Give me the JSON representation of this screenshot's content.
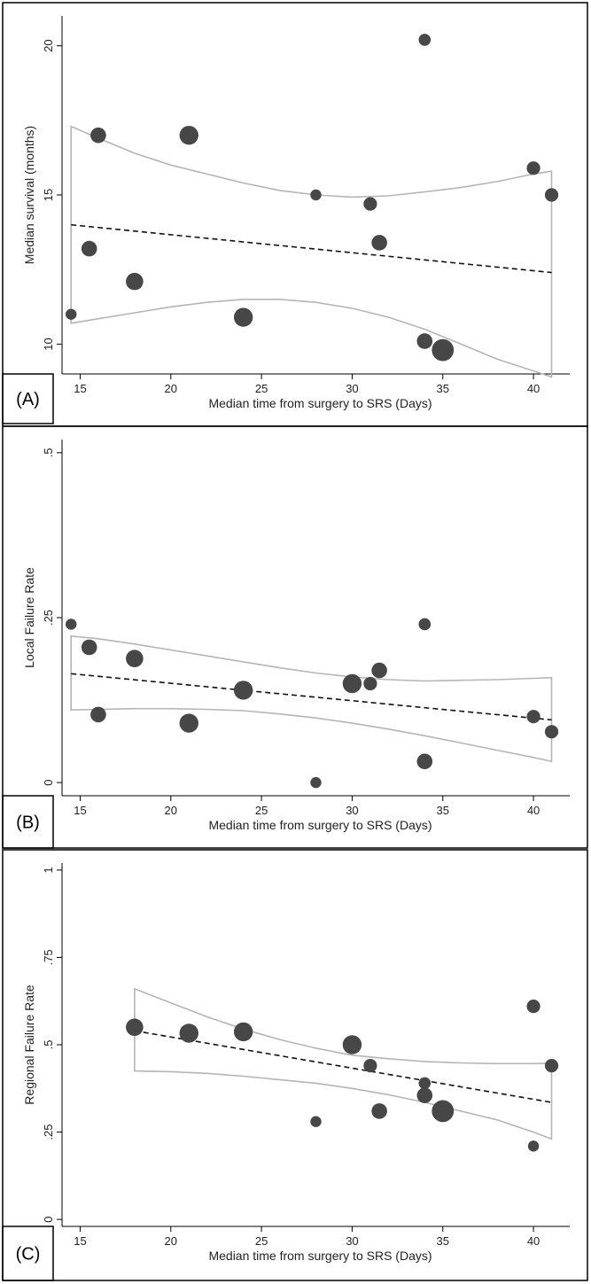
{
  "chart_data": [
    {
      "panel": "(A)",
      "type": "scatter",
      "xlabel": "Median time from surgery to SRS (Days)",
      "ylabel": "Median survival (months)",
      "xlim": [
        14,
        42
      ],
      "ylim": [
        9,
        21
      ],
      "xticks": [
        15,
        20,
        25,
        30,
        35,
        40
      ],
      "yticks": [
        10,
        15,
        20
      ],
      "ytick_labels": [
        "10",
        "15",
        "20"
      ],
      "points": [
        {
          "x": 14.5,
          "y": 11.0,
          "size": 1
        },
        {
          "x": 15.5,
          "y": 13.2,
          "size": 2
        },
        {
          "x": 16.0,
          "y": 17.0,
          "size": 2
        },
        {
          "x": 18.0,
          "y": 12.1,
          "size": 2.5
        },
        {
          "x": 21.0,
          "y": 17.0,
          "size": 3
        },
        {
          "x": 24.0,
          "y": 10.9,
          "size": 3
        },
        {
          "x": 28.0,
          "y": 15.0,
          "size": 1
        },
        {
          "x": 31.0,
          "y": 14.7,
          "size": 1.5
        },
        {
          "x": 31.5,
          "y": 13.4,
          "size": 2
        },
        {
          "x": 34.0,
          "y": 20.2,
          "size": 1.2
        },
        {
          "x": 34.0,
          "y": 10.1,
          "size": 2
        },
        {
          "x": 35.0,
          "y": 9.8,
          "size": 4
        },
        {
          "x": 40.0,
          "y": 15.9,
          "size": 1.5
        },
        {
          "x": 41.0,
          "y": 15.0,
          "size": 1.5
        }
      ],
      "fit": {
        "x": [
          14.5,
          41
        ],
        "y": [
          14.0,
          12.4
        ]
      },
      "ci_upper": {
        "x": [
          14.5,
          16,
          18,
          20,
          22,
          24,
          26,
          28,
          30,
          32,
          34,
          36,
          38,
          40,
          41
        ],
        "y": [
          17.3,
          16.9,
          16.4,
          16.0,
          15.7,
          15.4,
          15.15,
          15.0,
          14.93,
          14.97,
          15.1,
          15.25,
          15.45,
          15.7,
          15.8
        ]
      },
      "ci_lower": {
        "x": [
          14.5,
          16,
          18,
          20,
          22,
          24,
          26,
          28,
          30,
          32,
          34,
          36,
          38,
          40,
          41
        ],
        "y": [
          10.7,
          10.85,
          11.05,
          11.25,
          11.4,
          11.5,
          11.5,
          11.4,
          11.2,
          10.9,
          10.5,
          10.0,
          9.5,
          9.1,
          8.9
        ]
      }
    },
    {
      "panel": "(B)",
      "type": "scatter",
      "xlabel": "Median time from surgery to SRS (Days)",
      "ylabel": "Local Failure Rate",
      "xlim": [
        14,
        42
      ],
      "ylim": [
        -0.02,
        0.52
      ],
      "xticks": [
        15,
        20,
        25,
        30,
        35,
        40
      ],
      "yticks": [
        0,
        0.25,
        0.5
      ],
      "ytick_labels": [
        "0",
        ".25",
        ".5"
      ],
      "points": [
        {
          "x": 14.5,
          "y": 0.24,
          "size": 1
        },
        {
          "x": 15.5,
          "y": 0.205,
          "size": 2
        },
        {
          "x": 16.0,
          "y": 0.103,
          "size": 2
        },
        {
          "x": 18.0,
          "y": 0.188,
          "size": 2.5
        },
        {
          "x": 21.0,
          "y": 0.09,
          "size": 3
        },
        {
          "x": 24.0,
          "y": 0.14,
          "size": 3
        },
        {
          "x": 28.0,
          "y": 0.0,
          "size": 1
        },
        {
          "x": 30.0,
          "y": 0.15,
          "size": 3
        },
        {
          "x": 31.0,
          "y": 0.15,
          "size": 1.5
        },
        {
          "x": 31.5,
          "y": 0.17,
          "size": 2
        },
        {
          "x": 34.0,
          "y": 0.24,
          "size": 1.2
        },
        {
          "x": 34.0,
          "y": 0.032,
          "size": 2
        },
        {
          "x": 40.0,
          "y": 0.1,
          "size": 1.5
        },
        {
          "x": 41.0,
          "y": 0.077,
          "size": 1.5
        }
      ],
      "fit": {
        "x": [
          14.5,
          41
        ],
        "y": [
          0.165,
          0.095
        ]
      },
      "ci_upper": {
        "x": [
          14.5,
          16,
          18,
          20,
          22,
          24,
          26,
          28,
          30,
          32,
          34,
          36,
          38,
          40,
          41
        ],
        "y": [
          0.222,
          0.218,
          0.21,
          0.201,
          0.192,
          0.183,
          0.174,
          0.166,
          0.16,
          0.156,
          0.154,
          0.155,
          0.156,
          0.158,
          0.159
        ]
      },
      "ci_lower": {
        "x": [
          14.5,
          16,
          18,
          20,
          22,
          24,
          26,
          28,
          30,
          32,
          34,
          36,
          38,
          40,
          41
        ],
        "y": [
          0.11,
          0.111,
          0.112,
          0.112,
          0.111,
          0.109,
          0.104,
          0.098,
          0.09,
          0.081,
          0.071,
          0.06,
          0.049,
          0.038,
          0.032
        ]
      }
    },
    {
      "panel": "(C)",
      "type": "scatter",
      "xlabel": "Median time from surgery to SRS (Days)",
      "ylabel": "Regional Failure Rate",
      "xlim": [
        14,
        42
      ],
      "ylim": [
        -0.02,
        1.02
      ],
      "xticks": [
        15,
        20,
        25,
        30,
        35,
        40
      ],
      "yticks": [
        0,
        0.25,
        0.5,
        0.75,
        1
      ],
      "ytick_labels": [
        "0",
        ".25",
        ".5",
        ".75",
        "1"
      ],
      "points": [
        {
          "x": 18.0,
          "y": 0.55,
          "size": 2.5
        },
        {
          "x": 21.0,
          "y": 0.533,
          "size": 3
        },
        {
          "x": 24.0,
          "y": 0.537,
          "size": 3
        },
        {
          "x": 28.0,
          "y": 0.28,
          "size": 1
        },
        {
          "x": 30.0,
          "y": 0.5,
          "size": 3
        },
        {
          "x": 31.0,
          "y": 0.44,
          "size": 1.5
        },
        {
          "x": 31.5,
          "y": 0.31,
          "size": 2
        },
        {
          "x": 34.0,
          "y": 0.39,
          "size": 1.2
        },
        {
          "x": 34.0,
          "y": 0.355,
          "size": 2
        },
        {
          "x": 35.0,
          "y": 0.31,
          "size": 4
        },
        {
          "x": 40.0,
          "y": 0.61,
          "size": 1.5
        },
        {
          "x": 40.0,
          "y": 0.21,
          "size": 1
        },
        {
          "x": 41.0,
          "y": 0.44,
          "size": 1.5
        }
      ],
      "fit": {
        "x": [
          18,
          41
        ],
        "y": [
          0.54,
          0.335
        ]
      },
      "ci_upper": {
        "x": [
          18,
          20,
          22,
          24,
          26,
          28,
          30,
          32,
          34,
          36,
          38,
          40,
          41
        ],
        "y": [
          0.66,
          0.62,
          0.58,
          0.545,
          0.515,
          0.49,
          0.47,
          0.46,
          0.452,
          0.448,
          0.446,
          0.446,
          0.447
        ]
      },
      "ci_lower": {
        "x": [
          18,
          20,
          22,
          24,
          26,
          28,
          30,
          32,
          34,
          36,
          38,
          40,
          41
        ],
        "y": [
          0.425,
          0.423,
          0.418,
          0.41,
          0.4,
          0.39,
          0.375,
          0.357,
          0.335,
          0.31,
          0.285,
          0.25,
          0.23
        ]
      }
    }
  ]
}
